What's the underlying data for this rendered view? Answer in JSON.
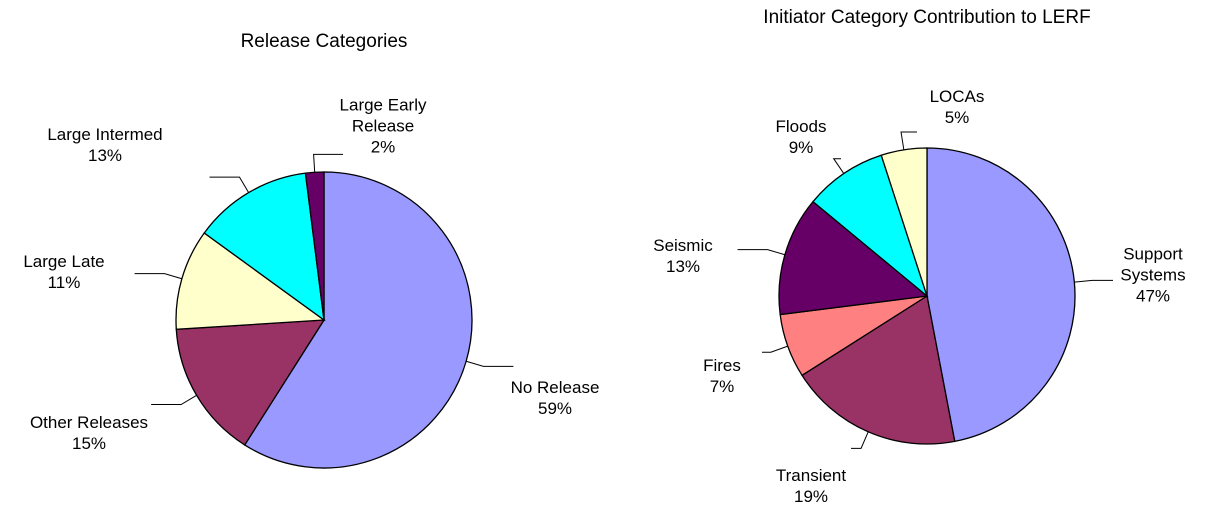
{
  "chart_data": [
    {
      "type": "pie",
      "title": "Release Categories",
      "categories": [
        "No Release",
        "Other Releases",
        "Large Late",
        "Large Intermed",
        "Large Early Release"
      ],
      "values": [
        59,
        15,
        11,
        13,
        2
      ],
      "value_labels": [
        "59%",
        "15%",
        "11%",
        "13%",
        "2%"
      ],
      "colors": [
        "#9999ff",
        "#993366",
        "#ffffcc",
        "#00ffff",
        "#660066"
      ]
    },
    {
      "type": "pie",
      "title": "Initiator Category Contribution to LERF",
      "categories": [
        "Support Systems",
        "Transient",
        "Fires",
        "Seismic",
        "Floods",
        "LOCAs"
      ],
      "values": [
        47,
        19,
        7,
        13,
        9,
        5
      ],
      "value_labels": [
        "47%",
        "19%",
        "7%",
        "13%",
        "9%",
        "5%"
      ],
      "colors": [
        "#9999ff",
        "#993366",
        "#ff8080",
        "#660066",
        "#00ffff",
        "#ffffcc"
      ]
    }
  ]
}
